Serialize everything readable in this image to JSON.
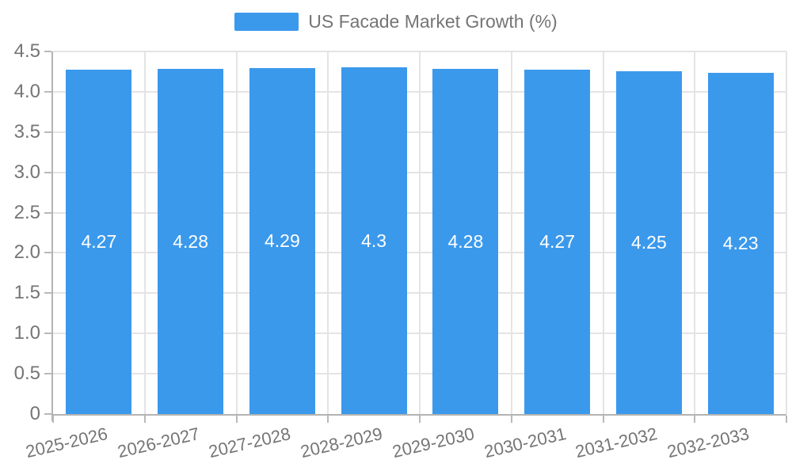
{
  "legend": {
    "label": "US Facade Market Growth (%)"
  },
  "colors": {
    "bar": "#3b99ec",
    "grid": "#e4e4e4",
    "axis": "#b3b3b3",
    "tick": "#b9b9b9",
    "text": "#757575",
    "bar_label": "#ffffff"
  },
  "chart_data": {
    "type": "bar",
    "title": "US Facade Market Growth (%)",
    "series_name": "US Facade Market Growth (%)",
    "categories": [
      "2025-2026",
      "2026-2027",
      "2027-2028",
      "2028-2029",
      "2029-2030",
      "2030-2031",
      "2031-2032",
      "2032-2033"
    ],
    "values": [
      4.27,
      4.28,
      4.29,
      4.3,
      4.28,
      4.27,
      4.25,
      4.23
    ],
    "value_labels": [
      "4.27",
      "4.28",
      "4.29",
      "4.3",
      "4.28",
      "4.27",
      "4.25",
      "4.23"
    ],
    "xlabel": "",
    "ylabel": "",
    "ylim": [
      0,
      4.5
    ],
    "ytick_values": [
      0,
      0.5,
      1,
      1.5,
      2,
      2.5,
      3,
      3.5,
      4,
      4.5
    ],
    "ytick_labels": [
      "0",
      "0.5",
      "1.0",
      "1.5",
      "2.0",
      "2.5",
      "3.0",
      "3.5",
      "4.0",
      "4.5"
    ],
    "grid": true,
    "legend_position": "top",
    "bar_labels_inside": true
  }
}
